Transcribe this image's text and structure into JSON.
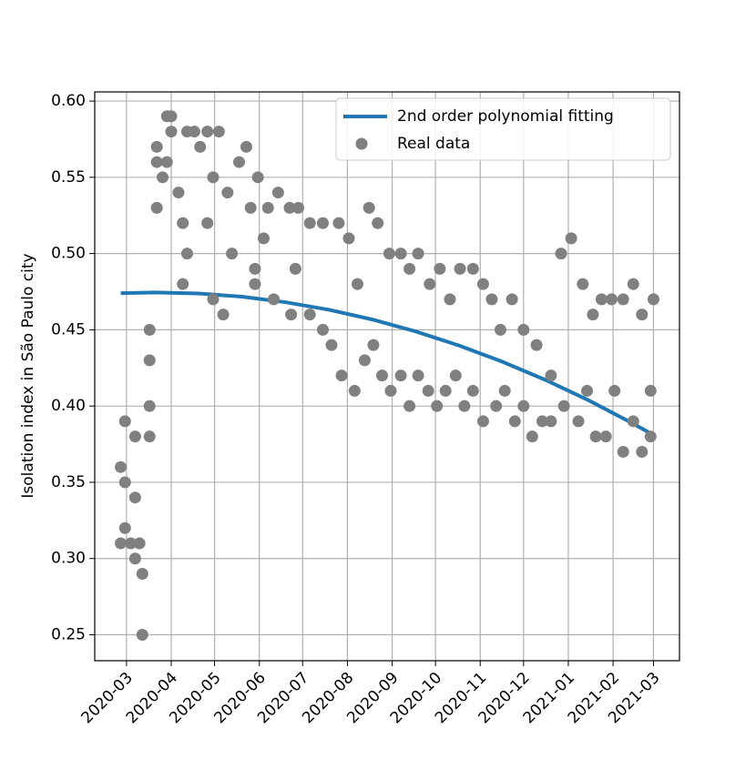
{
  "chart_data": {
    "type": "line",
    "ylabel": "Isolation index in São Paulo city",
    "xlim": [
      -22,
      383
    ],
    "ylim": [
      0.233,
      0.606
    ],
    "xticks": [
      {
        "value": 0,
        "label": "2020-03"
      },
      {
        "value": 31,
        "label": "2020-04"
      },
      {
        "value": 61,
        "label": "2020-05"
      },
      {
        "value": 92,
        "label": "2020-06"
      },
      {
        "value": 122,
        "label": "2020-07"
      },
      {
        "value": 153,
        "label": "2020-08"
      },
      {
        "value": 184,
        "label": "2020-09"
      },
      {
        "value": 214,
        "label": "2020-10"
      },
      {
        "value": 245,
        "label": "2020-11"
      },
      {
        "value": 275,
        "label": "2020-12"
      },
      {
        "value": 306,
        "label": "2021-01"
      },
      {
        "value": 337,
        "label": "2021-02"
      },
      {
        "value": 365,
        "label": "2021-03"
      }
    ],
    "yticks": [
      {
        "value": 0.25,
        "label": "0.25"
      },
      {
        "value": 0.3,
        "label": "0.30"
      },
      {
        "value": 0.35,
        "label": "0.35"
      },
      {
        "value": 0.4,
        "label": "0.40"
      },
      {
        "value": 0.45,
        "label": "0.45"
      },
      {
        "value": 0.5,
        "label": "0.50"
      },
      {
        "value": 0.55,
        "label": "0.55"
      },
      {
        "value": 0.6,
        "label": "0.60"
      }
    ],
    "grid": true,
    "legend": "upper right",
    "series": [
      {
        "name": "2nd order polynomial fitting",
        "type": "line",
        "color": "#1f77b4",
        "x": [
          -4,
          20,
          50,
          80,
          110,
          140,
          170,
          200,
          230,
          260,
          290,
          320,
          350,
          365
        ],
        "values": [
          0.474,
          0.4745,
          0.4738,
          0.4717,
          0.4681,
          0.4632,
          0.4568,
          0.449,
          0.4398,
          0.4292,
          0.4172,
          0.4038,
          0.3889,
          0.381
        ]
      },
      {
        "name": "Real data",
        "type": "scatter",
        "color": "#808080",
        "x": [
          -4,
          -4,
          -1,
          -1,
          -1,
          3,
          6,
          6,
          6,
          9,
          11,
          11,
          16,
          16,
          16,
          16,
          21,
          21,
          21,
          25,
          28,
          28,
          31,
          31,
          36,
          39,
          39,
          42,
          42,
          47,
          51,
          56,
          56,
          60,
          60,
          64,
          67,
          70,
          73,
          78,
          83,
          86,
          91,
          95,
          98,
          105,
          113,
          117,
          119,
          127,
          136,
          147,
          154,
          160,
          168,
          174,
          182,
          190,
          196,
          202,
          210,
          217,
          224,
          231,
          240,
          247,
          253,
          259,
          267,
          275,
          284,
          294,
          301,
          308,
          316,
          323,
          329,
          336,
          344,
          351,
          357,
          365,
          89,
          89,
          102,
          114,
          127,
          136,
          142,
          149,
          158,
          165,
          171,
          177,
          183,
          190,
          196,
          202,
          209,
          215,
          221,
          228,
          234,
          240,
          247,
          256,
          262,
          269,
          275,
          281,
          288,
          294,
          303,
          313,
          319,
          325,
          332,
          338,
          344,
          351,
          357,
          363,
          363
        ],
        "values": [
          0.36,
          0.31,
          0.39,
          0.35,
          0.32,
          0.31,
          0.34,
          0.38,
          0.3,
          0.31,
          0.29,
          0.25,
          0.38,
          0.4,
          0.43,
          0.45,
          0.53,
          0.57,
          0.56,
          0.55,
          0.59,
          0.56,
          0.58,
          0.59,
          0.54,
          0.52,
          0.48,
          0.58,
          0.5,
          0.58,
          0.57,
          0.58,
          0.52,
          0.55,
          0.47,
          0.58,
          0.46,
          0.54,
          0.5,
          0.56,
          0.57,
          0.53,
          0.55,
          0.51,
          0.53,
          0.54,
          0.53,
          0.49,
          0.53,
          0.52,
          0.52,
          0.52,
          0.51,
          0.48,
          0.53,
          0.52,
          0.5,
          0.5,
          0.49,
          0.5,
          0.48,
          0.49,
          0.47,
          0.49,
          0.49,
          0.48,
          0.47,
          0.45,
          0.47,
          0.45,
          0.44,
          0.42,
          0.5,
          0.51,
          0.48,
          0.46,
          0.47,
          0.47,
          0.47,
          0.48,
          0.46,
          0.47,
          0.48,
          0.49,
          0.47,
          0.46,
          0.46,
          0.45,
          0.44,
          0.42,
          0.41,
          0.43,
          0.44,
          0.42,
          0.41,
          0.42,
          0.4,
          0.42,
          0.41,
          0.4,
          0.41,
          0.42,
          0.4,
          0.41,
          0.39,
          0.4,
          0.41,
          0.39,
          0.4,
          0.38,
          0.39,
          0.39,
          0.4,
          0.39,
          0.41,
          0.38,
          0.38,
          0.41,
          0.37,
          0.39,
          0.37,
          0.38,
          0.41
        ]
      }
    ]
  }
}
